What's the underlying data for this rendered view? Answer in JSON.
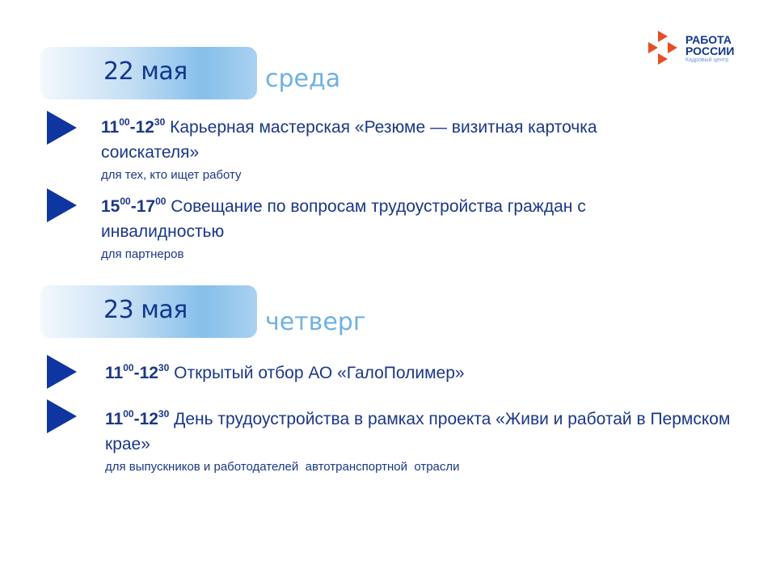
{
  "logo": {
    "line1": "РАБОТА",
    "line2": "РОССИИ",
    "tagline": "Кадровый центр",
    "color": "#e84c25"
  },
  "days": [
    {
      "date": "22 мая",
      "weekday": "среда",
      "events": [
        {
          "start_h": "11",
          "start_m": "00",
          "end_h": "12",
          "end_m": "30",
          "title": "Карьерная мастерская «Резюме — визитная карточка соискателя»",
          "audience": "для тех, кто ищет работу"
        },
        {
          "start_h": "15",
          "start_m": "00",
          "end_h": "17",
          "end_m": "00",
          "title": "Совещание по вопросам трудоустройства граждан с инвалидностью",
          "audience": "для партнеров"
        }
      ]
    },
    {
      "date": "23 мая",
      "weekday": "четверг",
      "events": [
        {
          "start_h": "11",
          "start_m": "00",
          "end_h": "12",
          "end_m": "30",
          "title": "Открытый отбор АО «ГалоПолимер»"
        },
        {
          "start_h": "11",
          "start_m": "00",
          "end_h": "12",
          "end_m": "30",
          "title": "День трудоустройства в рамках проекта «Живи и работай в Пермском крае»",
          "audience": "для выпускников и работодателей  автотранспортной  отрасли"
        }
      ]
    }
  ],
  "colors": {
    "accent": "#0f35a0",
    "weekday": "#6eb1e3",
    "text": "#1b3787"
  }
}
